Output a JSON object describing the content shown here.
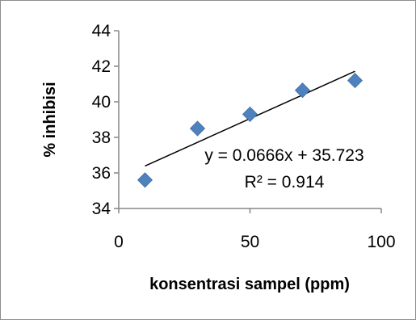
{
  "chart_data": {
    "type": "scatter",
    "xlabel": "konsentrasi sampel (ppm)",
    "ylabel": "% inhibisi",
    "xlim": [
      0,
      100
    ],
    "ylim": [
      34,
      44
    ],
    "x_ticks": [
      0,
      50,
      100
    ],
    "y_ticks": [
      34,
      36,
      38,
      40,
      42,
      44
    ],
    "x_tick_labels": [
      "0",
      "50",
      "100"
    ],
    "y_tick_labels": [
      "34",
      "36",
      "38",
      "40",
      "42",
      "44"
    ],
    "series": [
      {
        "marker": "diamond",
        "color": "#4f81bd",
        "x": [
          10,
          30,
          50,
          70,
          90
        ],
        "y": [
          35.6,
          38.5,
          39.3,
          40.65,
          41.2
        ]
      }
    ],
    "trendline": {
      "type": "linear",
      "slope": 0.0666,
      "intercept": 35.723,
      "x_range": [
        10,
        90
      ],
      "color": "#000000",
      "equation": "y = 0.0666x + 35.723",
      "r_squared": "R² = 0.914"
    },
    "grid": false,
    "legend": "none"
  }
}
